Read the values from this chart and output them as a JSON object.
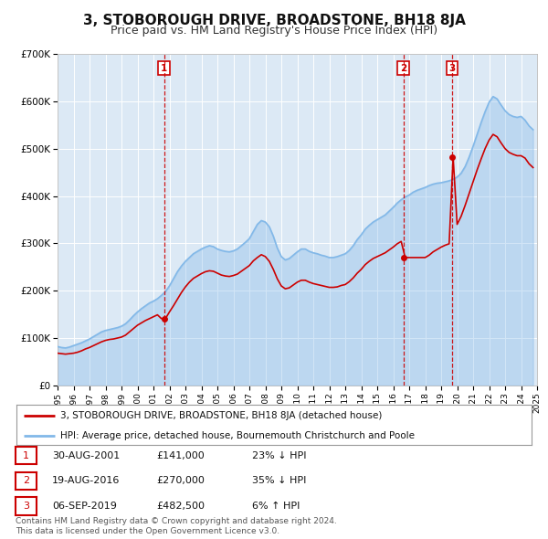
{
  "title": "3, STOBOROUGH DRIVE, BROADSTONE, BH18 8JA",
  "subtitle": "Price paid vs. HM Land Registry's House Price Index (HPI)",
  "title_fontsize": 11,
  "subtitle_fontsize": 9,
  "background_color": "#ffffff",
  "plot_bg_color": "#dce9f5",
  "grid_color": "#ffffff",
  "hpi_color": "#82b8e8",
  "price_color": "#cc0000",
  "ylim": [
    0,
    700000
  ],
  "yticks": [
    0,
    100000,
    200000,
    300000,
    400000,
    500000,
    600000,
    700000
  ],
  "ytick_labels": [
    "£0",
    "£100K",
    "£200K",
    "£300K",
    "£400K",
    "£500K",
    "£600K",
    "£700K"
  ],
  "year_start": 1995,
  "year_end": 2025,
  "transactions": [
    {
      "label": "1",
      "date": "30-AUG-2001",
      "year": 2001.67,
      "price": 141000,
      "hpi_diff": "23% ↓ HPI"
    },
    {
      "label": "2",
      "date": "19-AUG-2016",
      "year": 2016.63,
      "price": 270000,
      "hpi_diff": "35% ↓ HPI"
    },
    {
      "label": "3",
      "date": "06-SEP-2019",
      "year": 2019.68,
      "price": 482500,
      "hpi_diff": "6% ↑ HPI"
    }
  ],
  "legend_line1": "3, STOBOROUGH DRIVE, BROADSTONE, BH18 8JA (detached house)",
  "legend_line2": "HPI: Average price, detached house, Bournemouth Christchurch and Poole",
  "footnote": "Contains HM Land Registry data © Crown copyright and database right 2024.\nThis data is licensed under the Open Government Licence v3.0.",
  "hpi_data_x": [
    1995.0,
    1995.25,
    1995.5,
    1995.75,
    1996.0,
    1996.25,
    1996.5,
    1996.75,
    1997.0,
    1997.25,
    1997.5,
    1997.75,
    1998.0,
    1998.25,
    1998.5,
    1998.75,
    1999.0,
    1999.25,
    1999.5,
    1999.75,
    2000.0,
    2000.25,
    2000.5,
    2000.75,
    2001.0,
    2001.25,
    2001.5,
    2001.75,
    2002.0,
    2002.25,
    2002.5,
    2002.75,
    2003.0,
    2003.25,
    2003.5,
    2003.75,
    2004.0,
    2004.25,
    2004.5,
    2004.75,
    2005.0,
    2005.25,
    2005.5,
    2005.75,
    2006.0,
    2006.25,
    2006.5,
    2006.75,
    2007.0,
    2007.25,
    2007.5,
    2007.75,
    2008.0,
    2008.25,
    2008.5,
    2008.75,
    2009.0,
    2009.25,
    2009.5,
    2009.75,
    2010.0,
    2010.25,
    2010.5,
    2010.75,
    2011.0,
    2011.25,
    2011.5,
    2011.75,
    2012.0,
    2012.25,
    2012.5,
    2012.75,
    2013.0,
    2013.25,
    2013.5,
    2013.75,
    2014.0,
    2014.25,
    2014.5,
    2014.75,
    2015.0,
    2015.25,
    2015.5,
    2015.75,
    2016.0,
    2016.25,
    2016.5,
    2016.75,
    2017.0,
    2017.25,
    2017.5,
    2017.75,
    2018.0,
    2018.25,
    2018.5,
    2018.75,
    2019.0,
    2019.25,
    2019.5,
    2019.75,
    2020.0,
    2020.25,
    2020.5,
    2020.75,
    2021.0,
    2021.25,
    2021.5,
    2021.75,
    2022.0,
    2022.25,
    2022.5,
    2022.75,
    2023.0,
    2023.25,
    2023.5,
    2023.75,
    2024.0,
    2024.25,
    2024.5,
    2024.75
  ],
  "hpi_data_y": [
    82000,
    80000,
    79000,
    81000,
    84000,
    87000,
    90000,
    94000,
    98000,
    103000,
    108000,
    113000,
    116000,
    118000,
    120000,
    122000,
    125000,
    130000,
    138000,
    147000,
    155000,
    162000,
    168000,
    174000,
    178000,
    183000,
    190000,
    198000,
    210000,
    225000,
    240000,
    252000,
    262000,
    270000,
    278000,
    283000,
    288000,
    292000,
    295000,
    293000,
    288000,
    285000,
    283000,
    282000,
    284000,
    288000,
    295000,
    302000,
    310000,
    325000,
    340000,
    348000,
    345000,
    335000,
    315000,
    290000,
    272000,
    265000,
    268000,
    275000,
    282000,
    288000,
    288000,
    283000,
    280000,
    278000,
    275000,
    273000,
    270000,
    270000,
    272000,
    275000,
    278000,
    285000,
    295000,
    308000,
    318000,
    330000,
    338000,
    345000,
    350000,
    355000,
    360000,
    368000,
    376000,
    385000,
    392000,
    398000,
    402000,
    408000,
    412000,
    415000,
    418000,
    422000,
    425000,
    427000,
    428000,
    430000,
    432000,
    435000,
    440000,
    448000,
    462000,
    482000,
    505000,
    530000,
    555000,
    578000,
    598000,
    610000,
    605000,
    592000,
    580000,
    572000,
    568000,
    566000,
    568000,
    560000,
    548000,
    540000
  ],
  "price_data_x": [
    1995.0,
    1995.25,
    1995.5,
    1995.75,
    1996.0,
    1996.25,
    1996.5,
    1996.75,
    1997.0,
    1997.25,
    1997.5,
    1997.75,
    1998.0,
    1998.25,
    1998.5,
    1998.75,
    1999.0,
    1999.25,
    1999.5,
    1999.75,
    2000.0,
    2000.25,
    2000.5,
    2000.75,
    2001.0,
    2001.25,
    2001.5,
    2001.75,
    2002.0,
    2002.25,
    2002.5,
    2002.75,
    2003.0,
    2003.25,
    2003.5,
    2003.75,
    2004.0,
    2004.25,
    2004.5,
    2004.75,
    2005.0,
    2005.25,
    2005.5,
    2005.75,
    2006.0,
    2006.25,
    2006.5,
    2006.75,
    2007.0,
    2007.25,
    2007.5,
    2007.75,
    2008.0,
    2008.25,
    2008.5,
    2008.75,
    2009.0,
    2009.25,
    2009.5,
    2009.75,
    2010.0,
    2010.25,
    2010.5,
    2010.75,
    2011.0,
    2011.25,
    2011.5,
    2011.75,
    2012.0,
    2012.25,
    2012.5,
    2012.75,
    2013.0,
    2013.25,
    2013.5,
    2013.75,
    2014.0,
    2014.25,
    2014.5,
    2014.75,
    2015.0,
    2015.25,
    2015.5,
    2015.75,
    2016.0,
    2016.25,
    2016.5,
    2016.75,
    2017.0,
    2017.25,
    2017.5,
    2017.75,
    2018.0,
    2018.25,
    2018.5,
    2018.75,
    2019.0,
    2019.25,
    2019.5,
    2019.75,
    2020.0,
    2020.25,
    2020.5,
    2020.75,
    2021.0,
    2021.25,
    2021.5,
    2021.75,
    2022.0,
    2022.25,
    2022.5,
    2022.75,
    2023.0,
    2023.25,
    2023.5,
    2023.75,
    2024.0,
    2024.25,
    2024.5,
    2024.75
  ],
  "price_data_y": [
    68000,
    67000,
    66000,
    67000,
    68000,
    70000,
    73000,
    77000,
    80000,
    84000,
    88000,
    92000,
    95000,
    97000,
    98000,
    100000,
    102000,
    106000,
    113000,
    120000,
    127000,
    132000,
    137000,
    141000,
    145000,
    149000,
    141000,
    141000,
    155000,
    168000,
    182000,
    196000,
    208000,
    218000,
    226000,
    231000,
    236000,
    240000,
    242000,
    241000,
    237000,
    233000,
    231000,
    230000,
    232000,
    235000,
    241000,
    247000,
    253000,
    263000,
    270000,
    276000,
    272000,
    262000,
    245000,
    225000,
    210000,
    204000,
    206000,
    212000,
    218000,
    222000,
    222000,
    218000,
    215000,
    213000,
    211000,
    209000,
    207000,
    207000,
    208000,
    211000,
    213000,
    219000,
    227000,
    237000,
    245000,
    255000,
    262000,
    268000,
    272000,
    276000,
    280000,
    286000,
    292000,
    299000,
    304000,
    270000,
    270000,
    270000,
    270000,
    270000,
    270000,
    275000,
    282000,
    287000,
    292000,
    296000,
    299000,
    482500,
    340000,
    357000,
    380000,
    405000,
    430000,
    455000,
    478000,
    500000,
    518000,
    530000,
    525000,
    512000,
    500000,
    492000,
    488000,
    485000,
    485000,
    480000,
    468000,
    460000
  ]
}
